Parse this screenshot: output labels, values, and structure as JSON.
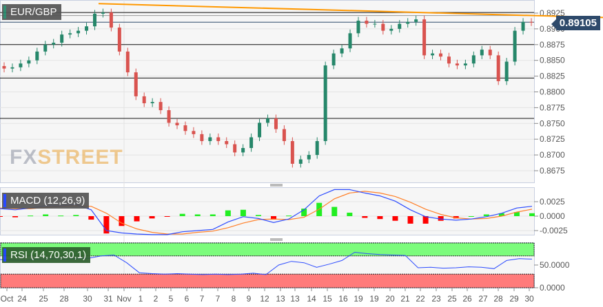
{
  "symbol": "EUR/GBP",
  "current_price": "0.89105",
  "logo": "FXSTREET",
  "colors": {
    "up": "#26876a",
    "down": "#d9534f",
    "trendline": "#ff9800",
    "macd": "#2c4bff",
    "signal": "#ff7f27",
    "hist_up": "#22ee22",
    "hist_down": "#ff0000",
    "rsi_over": "#7cfc7c",
    "rsi_under": "#ff7b7b"
  },
  "chart_data": [
    {
      "type": "candlestick",
      "title": "EUR/GBP",
      "y_ticks": [
        "0.8925",
        "0.8900",
        "0.8875",
        "0.8850",
        "0.8825",
        "0.8800",
        "0.8775",
        "0.8750",
        "0.8725",
        "0.8700",
        "0.8675"
      ],
      "ylim": [
        0.866,
        0.8945
      ],
      "closes": [
        0.8837,
        0.8839,
        0.8845,
        0.885,
        0.8864,
        0.8875,
        0.8878,
        0.8891,
        0.8893,
        0.8897,
        0.8904,
        0.8924,
        0.8926,
        0.8902,
        0.8864,
        0.8831,
        0.8793,
        0.8782,
        0.8784,
        0.8771,
        0.8751,
        0.8747,
        0.8738,
        0.8733,
        0.8722,
        0.8728,
        0.8722,
        0.8717,
        0.8704,
        0.8711,
        0.8728,
        0.8751,
        0.8758,
        0.8741,
        0.8722,
        0.8686,
        0.8693,
        0.87,
        0.8722,
        0.8842,
        0.8861,
        0.8869,
        0.8893,
        0.8913,
        0.8908,
        0.8908,
        0.8897,
        0.89,
        0.8908,
        0.8911,
        0.8915,
        0.8858,
        0.8861,
        0.8856,
        0.8845,
        0.8842,
        0.8845,
        0.8858,
        0.8867,
        0.8858,
        0.8817,
        0.8848,
        0.8897,
        0.8911,
        0.89105
      ],
      "horizontal_levels": [
        0.8926,
        0.8875,
        0.8822,
        0.8758
      ],
      "trendline": [
        0.894,
        0.8918
      ]
    },
    {
      "type": "line",
      "title": "MACD (12,26,9)",
      "y_ticks": [
        "0.0025",
        "0.0000",
        "-0.0025"
      ],
      "ylim": [
        -0.0035,
        0.005
      ],
      "macd": [
        0.0013,
        0.0011,
        0.0014,
        0.0018,
        0.0018,
        0.002,
        0.0011,
        -0.0025,
        -0.0029,
        -0.0031,
        -0.0032,
        -0.0032,
        -0.0027,
        -0.0025,
        -0.0023,
        -0.001,
        -0.0001,
        -0.0004,
        -0.0011,
        -0.0005,
        0.0011,
        0.0035,
        0.0046,
        0.0046,
        0.004,
        0.0035,
        0.0026,
        0.0011,
        -0.0001,
        -0.0005,
        -0.0007,
        -0.0005,
        -0.0001,
        0.0005,
        0.0014,
        0.0017
      ],
      "signal": [
        0.0014,
        0.0013,
        0.0013,
        0.0015,
        0.0017,
        0.0018,
        0.0017,
        0.0005,
        -0.0012,
        -0.0022,
        -0.0028,
        -0.0031,
        -0.0031,
        -0.0028,
        -0.0026,
        -0.002,
        -0.0012,
        -0.0006,
        -0.0005,
        -0.0006,
        -0.0002,
        0.0012,
        0.003,
        0.004,
        0.0043,
        0.004,
        0.0034,
        0.0024,
        0.0012,
        0.0003,
        -0.0003,
        -0.0005,
        -0.0004,
        0.0,
        0.0007,
        0.0012
      ]
    },
    {
      "type": "line",
      "title": "RSI (14,70,30,1)",
      "y_ticks": [
        "50.0000",
        "0.0000"
      ],
      "ylim": [
        0,
        100
      ],
      "overbought": 70,
      "oversold": 30,
      "rsi": [
        62,
        61,
        60,
        63,
        64,
        63,
        64,
        65,
        70,
        72,
        55,
        33,
        31,
        30,
        31,
        30,
        29,
        30,
        29,
        30,
        32,
        29,
        50,
        58,
        55,
        45,
        52,
        60,
        78,
        75,
        73,
        72,
        71,
        44,
        45,
        43,
        44,
        46,
        45,
        42,
        60,
        64,
        63
      ]
    }
  ],
  "x_labels": [
    "Oct",
    "24",
    "25",
    "28",
    "30",
    "31",
    "Nov",
    "1",
    "2",
    "5",
    "6",
    "7",
    "7",
    "8",
    "9",
    "12",
    "13",
    "13",
    "14",
    "15",
    "16",
    "19",
    "19",
    "20",
    "21",
    "22",
    "23",
    "25",
    "26",
    "27",
    "28",
    "29",
    "30"
  ]
}
